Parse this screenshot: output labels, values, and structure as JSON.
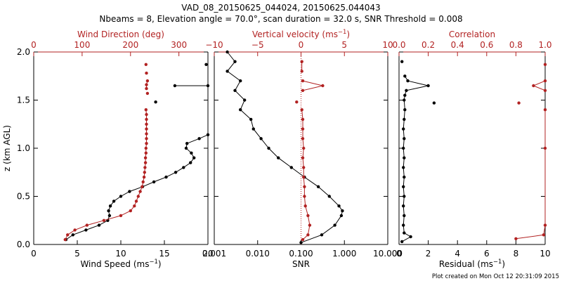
{
  "figure": {
    "title_line1": "VAD_08_20150625_044024, 20150625.044043",
    "title_line2": "Nbeams = 8, Elevation angle = 70.0°, scan duration = 32.0 s, SNR Threshold = 0.008",
    "footer": "Plot created on Mon Oct 12 20:31:09 2015",
    "black": "#000000",
    "red": "#b22222"
  },
  "chart_data": [
    {
      "type": "line",
      "ylabel": "z (km AGL)",
      "ylim": [
        0,
        2
      ],
      "yticks": [
        "0.0",
        "0.5",
        "1.0",
        "1.5",
        "2.0"
      ],
      "bottom_axis": {
        "label": "Wind Speed (ms",
        "label_sup": "−1",
        "label_tail": ")",
        "range": [
          0,
          20
        ],
        "ticks": [
          {
            "v": 0,
            "t": "0"
          },
          {
            "v": 5,
            "t": "5"
          },
          {
            "v": 10,
            "t": "10"
          },
          {
            "v": 15,
            "t": "15"
          },
          {
            "v": 20,
            "t": "20"
          }
        ]
      },
      "top_axis": {
        "label": "Wind Direction (deg)",
        "label_sup": "",
        "label_tail": "",
        "range": [
          0,
          360
        ],
        "ticks": [
          {
            "v": 0,
            "t": "0"
          },
          {
            "v": 100,
            "t": "100"
          },
          {
            "v": 200,
            "t": "200"
          },
          {
            "v": 300,
            "t": "300"
          }
        ]
      },
      "series": [
        {
          "axis": "bottom",
          "color": "black",
          "points": [
            [
              3.7,
              0.05
            ],
            [
              4.5,
              0.1
            ],
            [
              6.0,
              0.15
            ],
            [
              7.5,
              0.2
            ],
            [
              8.5,
              0.25
            ],
            [
              8.7,
              0.3
            ],
            [
              8.6,
              0.35
            ],
            [
              8.8,
              0.4
            ],
            [
              9.2,
              0.45
            ],
            [
              10.0,
              0.5
            ],
            [
              11.0,
              0.55
            ],
            [
              12.5,
              0.6
            ],
            [
              13.8,
              0.65
            ],
            [
              15.2,
              0.7
            ],
            [
              16.3,
              0.75
            ],
            [
              17.2,
              0.8
            ],
            [
              18.0,
              0.85
            ],
            [
              18.4,
              0.9
            ],
            [
              18.1,
              0.95
            ],
            [
              17.5,
              1.0
            ],
            [
              17.6,
              1.05
            ],
            [
              19.0,
              1.1
            ],
            [
              20.0,
              1.14
            ],
            [
              null,
              null
            ],
            [
              19.8,
              1.87
            ],
            [
              null,
              null
            ],
            [
              14.0,
              1.48
            ],
            [
              null,
              null
            ],
            [
              16.2,
              1.65
            ],
            [
              20.0,
              1.65
            ]
          ]
        },
        {
          "axis": "top",
          "color": "red",
          "points": [
            [
              65,
              0.05
            ],
            [
              70,
              0.1
            ],
            [
              85,
              0.15
            ],
            [
              110,
              0.2
            ],
            [
              145,
              0.25
            ],
            [
              180,
              0.3
            ],
            [
              200,
              0.35
            ],
            [
              208,
              0.4
            ],
            [
              212,
              0.45
            ],
            [
              216,
              0.5
            ],
            [
              220,
              0.55
            ],
            [
              224,
              0.6
            ],
            [
              226,
              0.65
            ],
            [
              228,
              0.7
            ],
            [
              229,
              0.75
            ],
            [
              230,
              0.8
            ],
            [
              231,
              0.85
            ],
            [
              231,
              0.9
            ],
            [
              232,
              0.95
            ],
            [
              232,
              1.0
            ],
            [
              233,
              1.05
            ],
            [
              233,
              1.1
            ],
            [
              233,
              1.15
            ],
            [
              233,
              1.2
            ],
            [
              233,
              1.25
            ],
            [
              233,
              1.3
            ],
            [
              233,
              1.35
            ],
            [
              232,
              1.4
            ],
            [
              null,
              null
            ],
            [
              235,
              1.57
            ],
            [
              null,
              null
            ],
            [
              233,
              1.62
            ],
            [
              233,
              1.66
            ],
            [
              235,
              1.7
            ],
            [
              null,
              null
            ],
            [
              233,
              1.78
            ],
            [
              null,
              null
            ],
            [
              232,
              1.87
            ]
          ]
        }
      ]
    },
    {
      "type": "line",
      "ylim": [
        0,
        2
      ],
      "bottom_axis": {
        "label": "SNR",
        "label_sup": "",
        "label_tail": "",
        "scale": "log",
        "range": [
          0.001,
          10
        ],
        "ticks": [
          {
            "v": 0.001,
            "t": "0.001"
          },
          {
            "v": 0.01,
            "t": "0.010"
          },
          {
            "v": 0.1,
            "t": "0.100"
          },
          {
            "v": 1,
            "t": "1.000"
          },
          {
            "v": 10,
            "t": "10.000"
          }
        ]
      },
      "top_axis": {
        "label": "Vertical velocity (ms",
        "label_sup": "−1",
        "label_tail": ")",
        "range": [
          -10,
          10
        ],
        "ticks": [
          {
            "v": -10,
            "t": "−10"
          },
          {
            "v": -5,
            "t": "−5"
          },
          {
            "v": 0,
            "t": "0"
          },
          {
            "v": 5,
            "t": "5"
          },
          {
            "v": 10,
            "t": "10"
          }
        ]
      },
      "series": [
        {
          "axis": "bottom",
          "color": "black",
          "points": [
            [
              0.1,
              0.02
            ],
            [
              0.3,
              0.1
            ],
            [
              0.6,
              0.2
            ],
            [
              0.85,
              0.3
            ],
            [
              0.9,
              0.35
            ],
            [
              0.75,
              0.4
            ],
            [
              0.45,
              0.5
            ],
            [
              0.25,
              0.6
            ],
            [
              0.12,
              0.7
            ],
            [
              0.06,
              0.8
            ],
            [
              0.03,
              0.9
            ],
            [
              0.018,
              1.0
            ],
            [
              0.012,
              1.1
            ],
            [
              0.008,
              1.2
            ],
            [
              0.007,
              1.3
            ],
            [
              0.004,
              1.4
            ],
            [
              0.005,
              1.5
            ],
            [
              0.003,
              1.6
            ],
            [
              0.004,
              1.7
            ],
            [
              0.002,
              1.8
            ],
            [
              0.003,
              1.9
            ],
            [
              0.002,
              2.0
            ]
          ]
        },
        {
          "axis": "top",
          "color": "red",
          "points": [
            [
              0.2,
              0.05
            ],
            [
              0.8,
              0.1
            ],
            [
              1.0,
              0.2
            ],
            [
              0.8,
              0.3
            ],
            [
              0.5,
              0.4
            ],
            [
              0.4,
              0.5
            ],
            [
              0.4,
              0.6
            ],
            [
              0.3,
              0.7
            ],
            [
              0.3,
              0.8
            ],
            [
              0.2,
              0.9
            ],
            [
              0.3,
              1.0
            ],
            [
              0.2,
              1.1
            ],
            [
              0.2,
              1.2
            ],
            [
              0.2,
              1.3
            ],
            [
              0.1,
              1.4
            ],
            [
              null,
              null
            ],
            [
              -0.5,
              1.48
            ],
            [
              null,
              null
            ],
            [
              0.2,
              1.6
            ],
            [
              2.5,
              1.65
            ],
            [
              0.2,
              1.7
            ],
            [
              null,
              null
            ],
            [
              0.1,
              1.8
            ],
            [
              0.1,
              1.9
            ]
          ]
        }
      ]
    },
    {
      "type": "line",
      "ylim": [
        0,
        2
      ],
      "bottom_axis": {
        "label": "Residual (ms",
        "label_sup": "−1",
        "label_tail": ")",
        "range": [
          0,
          10
        ],
        "ticks": [
          {
            "v": 0,
            "t": "0"
          },
          {
            "v": 2,
            "t": "2"
          },
          {
            "v": 4,
            "t": "4"
          },
          {
            "v": 6,
            "t": "6"
          },
          {
            "v": 8,
            "t": "8"
          },
          {
            "v": 10,
            "t": "10"
          }
        ]
      },
      "top_axis": {
        "label": "Correlation",
        "label_sup": "",
        "label_tail": "",
        "range": [
          0,
          1
        ],
        "ticks": [
          {
            "v": 0,
            "t": "0.0"
          },
          {
            "v": 0.2,
            "t": "0.2"
          },
          {
            "v": 0.4,
            "t": "0.4"
          },
          {
            "v": 0.6,
            "t": "0.6"
          },
          {
            "v": 0.8,
            "t": "0.8"
          },
          {
            "v": 1.0,
            "t": "1.0"
          }
        ]
      },
      "series": [
        {
          "axis": "bottom",
          "color": "black",
          "points": [
            [
              0.2,
              0.03
            ],
            [
              0.8,
              0.08
            ],
            [
              0.35,
              0.12
            ],
            [
              0.3,
              0.2
            ],
            [
              0.35,
              0.3
            ],
            [
              0.3,
              0.4
            ],
            [
              0.35,
              0.5
            ],
            [
              0.3,
              0.6
            ],
            [
              0.35,
              0.7
            ],
            [
              0.3,
              0.8
            ],
            [
              0.35,
              0.9
            ],
            [
              0.3,
              1.0
            ],
            [
              0.35,
              1.1
            ],
            [
              0.3,
              1.2
            ],
            [
              0.35,
              1.3
            ],
            [
              0.4,
              1.4
            ],
            [
              0.35,
              1.5
            ],
            [
              0.4,
              1.55
            ],
            [
              0.5,
              1.6
            ],
            [
              2.0,
              1.65
            ],
            [
              0.6,
              1.7
            ],
            [
              0.4,
              1.75
            ],
            [
              null,
              null
            ],
            [
              2.4,
              1.47
            ],
            [
              null,
              null
            ],
            [
              0.2,
              1.9
            ]
          ]
        },
        {
          "axis": "top",
          "color": "red",
          "points": [
            [
              0.8,
              0.06
            ],
            [
              0.99,
              0.1
            ],
            [
              1.0,
              0.2
            ],
            [
              1.0,
              1.0
            ],
            [
              1.0,
              1.4
            ],
            [
              null,
              null
            ],
            [
              0.82,
              1.47
            ],
            [
              null,
              null
            ],
            [
              1.0,
              1.6
            ],
            [
              0.92,
              1.65
            ],
            [
              1.0,
              1.7
            ],
            [
              null,
              null
            ],
            [
              1.0,
              1.87
            ]
          ]
        }
      ]
    }
  ]
}
